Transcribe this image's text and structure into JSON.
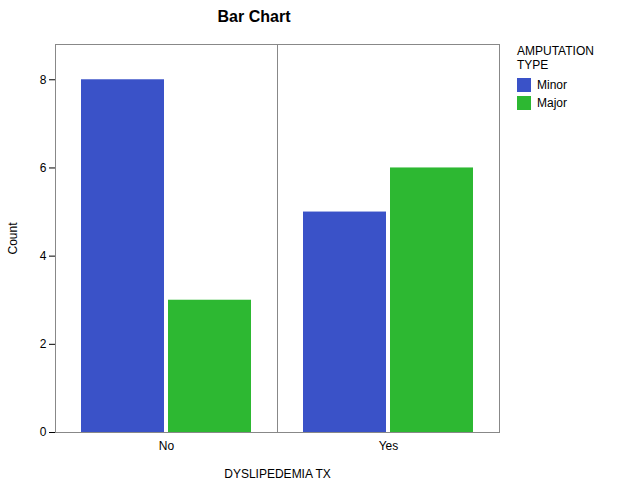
{
  "chart_data": {
    "type": "bar",
    "title": "Bar Chart",
    "xlabel": "DYSLIPEDEMIA TX",
    "ylabel": "Count",
    "legend_title": "AMPUTATION\nTYPE",
    "categories": [
      "No",
      "Yes"
    ],
    "series": [
      {
        "name": "Minor",
        "color": "#3a52c8",
        "values": [
          8,
          5
        ]
      },
      {
        "name": "Major",
        "color": "#2db832",
        "values": [
          3,
          6
        ]
      }
    ],
    "ylim": [
      0,
      8.8
    ],
    "yticks": [
      0,
      2,
      4,
      6,
      8
    ],
    "grid": false,
    "legend": "right"
  }
}
